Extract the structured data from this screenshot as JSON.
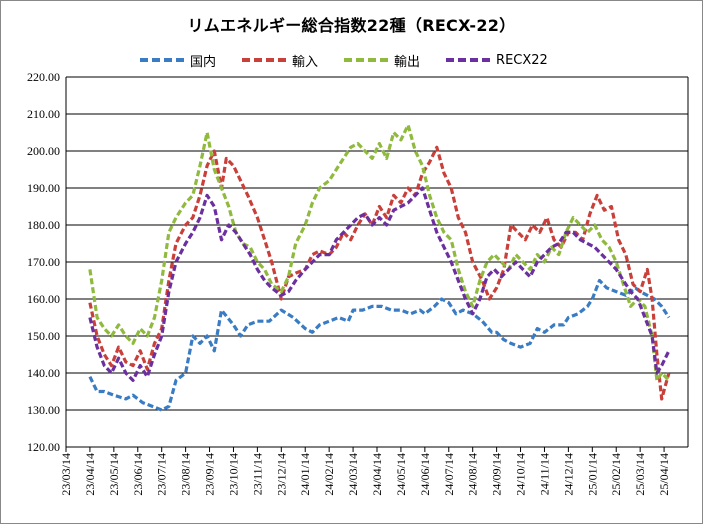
{
  "chart_data": {
    "type": "line",
    "title": "リムエネルギー総合指数22種（RECX-22）",
    "xlabel": "",
    "ylabel": "",
    "ylim": [
      120,
      220
    ],
    "yticks": [
      "120.00",
      "130.00",
      "140.00",
      "150.00",
      "160.00",
      "170.00",
      "180.00",
      "190.00",
      "200.00",
      "210.00",
      "220.00"
    ],
    "x_ticks": [
      "23/03/14",
      "23/04/14",
      "23/05/14",
      "23/06/14",
      "23/07/14",
      "23/08/14",
      "23/09/14",
      "23/10/14",
      "23/11/14",
      "23/12/14",
      "24/01/14",
      "24/02/14",
      "24/03/14",
      "24/04/14",
      "24/05/14",
      "24/06/14",
      "24/07/14",
      "24/08/14",
      "24/09/14",
      "24/10/14",
      "24/11/14",
      "24/12/14",
      "25/01/14",
      "25/02/14",
      "25/03/14",
      "25/04/14"
    ],
    "grid": true,
    "legend_position": "top",
    "series": [
      {
        "name": "国内",
        "color": "#3a7cc4",
        "points": [
          [
            1,
            139
          ],
          [
            1.3,
            135
          ],
          [
            1.6,
            135
          ],
          [
            2,
            134
          ],
          [
            2.5,
            133
          ],
          [
            2.8,
            134
          ],
          [
            3.2,
            132
          ],
          [
            3.6,
            131
          ],
          [
            4,
            130
          ],
          [
            4.3,
            131
          ],
          [
            4.6,
            138
          ],
          [
            5,
            140
          ],
          [
            5.3,
            150
          ],
          [
            5.6,
            148
          ],
          [
            5.9,
            150
          ],
          [
            6.2,
            146
          ],
          [
            6.5,
            157
          ],
          [
            7,
            153
          ],
          [
            7.3,
            150
          ],
          [
            7.6,
            153
          ],
          [
            8,
            154
          ],
          [
            8.5,
            154
          ],
          [
            9,
            157
          ],
          [
            9.5,
            155
          ],
          [
            10,
            152
          ],
          [
            10.3,
            151
          ],
          [
            10.6,
            153
          ],
          [
            11,
            154
          ],
          [
            11.4,
            155
          ],
          [
            11.8,
            154
          ],
          [
            12,
            157
          ],
          [
            12.4,
            157
          ],
          [
            12.8,
            158
          ],
          [
            13.2,
            158
          ],
          [
            13.6,
            157
          ],
          [
            14,
            157
          ],
          [
            14.4,
            156
          ],
          [
            14.8,
            157
          ],
          [
            15,
            156
          ],
          [
            15.4,
            158
          ],
          [
            15.7,
            160
          ],
          [
            16,
            159
          ],
          [
            16.3,
            156
          ],
          [
            16.6,
            157
          ],
          [
            17,
            156
          ],
          [
            17.4,
            154
          ],
          [
            17.8,
            151
          ],
          [
            18,
            151
          ],
          [
            18.3,
            149
          ],
          [
            18.6,
            148
          ],
          [
            19,
            147
          ],
          [
            19.4,
            148
          ],
          [
            19.7,
            152
          ],
          [
            20,
            151
          ],
          [
            20.4,
            153
          ],
          [
            20.8,
            153
          ],
          [
            21,
            155
          ],
          [
            21.4,
            156
          ],
          [
            21.8,
            158
          ],
          [
            22,
            160
          ],
          [
            22.3,
            165
          ],
          [
            22.6,
            163
          ],
          [
            23,
            162
          ],
          [
            23.4,
            161
          ],
          [
            23.8,
            163
          ],
          [
            24,
            162
          ],
          [
            24.3,
            161
          ],
          [
            24.6,
            160
          ],
          [
            24.9,
            158
          ],
          [
            25.2,
            155
          ]
        ]
      },
      {
        "name": "輸入",
        "color": "#c9403a",
        "points": [
          [
            1,
            159
          ],
          [
            1.3,
            150
          ],
          [
            1.6,
            145
          ],
          [
            1.9,
            142
          ],
          [
            2.2,
            147
          ],
          [
            2.5,
            143
          ],
          [
            2.8,
            142
          ],
          [
            3.1,
            146
          ],
          [
            3.4,
            141
          ],
          [
            3.7,
            148
          ],
          [
            4,
            152
          ],
          [
            4.3,
            165
          ],
          [
            4.6,
            175
          ],
          [
            5,
            180
          ],
          [
            5.3,
            182
          ],
          [
            5.6,
            188
          ],
          [
            5.9,
            196
          ],
          [
            6.2,
            200
          ],
          [
            6.5,
            190
          ],
          [
            6.7,
            198
          ],
          [
            7,
            196
          ],
          [
            7.3,
            192
          ],
          [
            7.6,
            188
          ],
          [
            8,
            182
          ],
          [
            8.3,
            176
          ],
          [
            8.6,
            170
          ],
          [
            9,
            160
          ],
          [
            9.3,
            166
          ],
          [
            9.6,
            167
          ],
          [
            10,
            168
          ],
          [
            10.3,
            172
          ],
          [
            10.6,
            173
          ],
          [
            11,
            172
          ],
          [
            11.3,
            174
          ],
          [
            11.6,
            178
          ],
          [
            11.9,
            176
          ],
          [
            12.2,
            180
          ],
          [
            12.5,
            183
          ],
          [
            12.8,
            180
          ],
          [
            13.1,
            185
          ],
          [
            13.4,
            182
          ],
          [
            13.7,
            188
          ],
          [
            14,
            186
          ],
          [
            14.3,
            190
          ],
          [
            14.6,
            188
          ],
          [
            14.9,
            194
          ],
          [
            15.2,
            197
          ],
          [
            15.5,
            201
          ],
          [
            15.8,
            194
          ],
          [
            16.1,
            190
          ],
          [
            16.4,
            182
          ],
          [
            16.7,
            178
          ],
          [
            17,
            170
          ],
          [
            17.4,
            165
          ],
          [
            17.7,
            160
          ],
          [
            18,
            163
          ],
          [
            18.3,
            168
          ],
          [
            18.6,
            180
          ],
          [
            18.9,
            178
          ],
          [
            19.2,
            176
          ],
          [
            19.5,
            180
          ],
          [
            19.8,
            178
          ],
          [
            20.1,
            182
          ],
          [
            20.4,
            176
          ],
          [
            20.7,
            174
          ],
          [
            21,
            178
          ],
          [
            21.3,
            178
          ],
          [
            21.6,
            176
          ],
          [
            21.9,
            183
          ],
          [
            22.2,
            188
          ],
          [
            22.5,
            184
          ],
          [
            22.8,
            185
          ],
          [
            23.1,
            176
          ],
          [
            23.4,
            172
          ],
          [
            23.7,
            164
          ],
          [
            24,
            162
          ],
          [
            24.3,
            168
          ],
          [
            24.5,
            160
          ],
          [
            24.7,
            145
          ],
          [
            24.9,
            133
          ],
          [
            25.2,
            140
          ]
        ]
      },
      {
        "name": "輸出",
        "color": "#8fba3e",
        "points": [
          [
            1,
            168
          ],
          [
            1.3,
            155
          ],
          [
            1.6,
            152
          ],
          [
            1.9,
            150
          ],
          [
            2.2,
            153
          ],
          [
            2.5,
            150
          ],
          [
            2.8,
            148
          ],
          [
            3.1,
            152
          ],
          [
            3.4,
            150
          ],
          [
            3.7,
            155
          ],
          [
            4,
            165
          ],
          [
            4.3,
            178
          ],
          [
            4.6,
            182
          ],
          [
            5,
            186
          ],
          [
            5.3,
            188
          ],
          [
            5.6,
            196
          ],
          [
            5.9,
            205
          ],
          [
            6.2,
            195
          ],
          [
            6.5,
            190
          ],
          [
            6.8,
            185
          ],
          [
            7.1,
            178
          ],
          [
            7.4,
            175
          ],
          [
            7.7,
            174
          ],
          [
            8,
            170
          ],
          [
            8.3,
            168
          ],
          [
            8.6,
            164
          ],
          [
            9,
            162
          ],
          [
            9.3,
            166
          ],
          [
            9.6,
            175
          ],
          [
            10,
            180
          ],
          [
            10.3,
            186
          ],
          [
            10.6,
            190
          ],
          [
            11,
            192
          ],
          [
            11.3,
            195
          ],
          [
            11.6,
            198
          ],
          [
            11.9,
            201
          ],
          [
            12.2,
            202
          ],
          [
            12.5,
            200
          ],
          [
            12.8,
            198
          ],
          [
            13.1,
            202
          ],
          [
            13.4,
            198
          ],
          [
            13.7,
            205
          ],
          [
            14,
            203
          ],
          [
            14.3,
            207
          ],
          [
            14.6,
            200
          ],
          [
            14.9,
            196
          ],
          [
            15.2,
            188
          ],
          [
            15.5,
            182
          ],
          [
            15.8,
            178
          ],
          [
            16.1,
            176
          ],
          [
            16.4,
            168
          ],
          [
            16.7,
            162
          ],
          [
            17,
            158
          ],
          [
            17.3,
            165
          ],
          [
            17.6,
            170
          ],
          [
            17.9,
            172
          ],
          [
            18.2,
            170
          ],
          [
            18.5,
            168
          ],
          [
            18.8,
            172
          ],
          [
            19.1,
            170
          ],
          [
            19.4,
            168
          ],
          [
            19.7,
            172
          ],
          [
            20,
            170
          ],
          [
            20.3,
            174
          ],
          [
            20.6,
            172
          ],
          [
            20.9,
            178
          ],
          [
            21.2,
            182
          ],
          [
            21.5,
            180
          ],
          [
            21.8,
            178
          ],
          [
            22.1,
            180
          ],
          [
            22.4,
            176
          ],
          [
            22.7,
            174
          ],
          [
            23,
            170
          ],
          [
            23.3,
            164
          ],
          [
            23.6,
            158
          ],
          [
            23.9,
            160
          ],
          [
            24.2,
            158
          ],
          [
            24.5,
            150
          ],
          [
            24.7,
            138
          ],
          [
            24.9,
            140
          ],
          [
            25.2,
            138
          ]
        ]
      },
      {
        "name": "RECX22",
        "color": "#6b2fa0",
        "points": [
          [
            1,
            155
          ],
          [
            1.3,
            147
          ],
          [
            1.6,
            142
          ],
          [
            1.9,
            140
          ],
          [
            2.2,
            144
          ],
          [
            2.5,
            140
          ],
          [
            2.8,
            138
          ],
          [
            3.1,
            142
          ],
          [
            3.4,
            139
          ],
          [
            3.7,
            145
          ],
          [
            4,
            150
          ],
          [
            4.3,
            162
          ],
          [
            4.6,
            170
          ],
          [
            5,
            175
          ],
          [
            5.3,
            178
          ],
          [
            5.6,
            182
          ],
          [
            5.9,
            188
          ],
          [
            6.2,
            185
          ],
          [
            6.5,
            176
          ],
          [
            6.8,
            180
          ],
          [
            7.1,
            178
          ],
          [
            7.4,
            175
          ],
          [
            7.7,
            172
          ],
          [
            8,
            168
          ],
          [
            8.3,
            165
          ],
          [
            8.6,
            163
          ],
          [
            9,
            161
          ],
          [
            9.3,
            162
          ],
          [
            9.6,
            165
          ],
          [
            10,
            168
          ],
          [
            10.3,
            170
          ],
          [
            10.6,
            172
          ],
          [
            11,
            172
          ],
          [
            11.3,
            176
          ],
          [
            11.6,
            178
          ],
          [
            11.9,
            180
          ],
          [
            12.2,
            182
          ],
          [
            12.5,
            183
          ],
          [
            12.8,
            180
          ],
          [
            13.1,
            182
          ],
          [
            13.4,
            180
          ],
          [
            13.7,
            184
          ],
          [
            14,
            185
          ],
          [
            14.3,
            186
          ],
          [
            14.6,
            188
          ],
          [
            14.9,
            190
          ],
          [
            15.2,
            184
          ],
          [
            15.5,
            178
          ],
          [
            15.8,
            174
          ],
          [
            16.1,
            170
          ],
          [
            16.4,
            165
          ],
          [
            16.7,
            160
          ],
          [
            17,
            156
          ],
          [
            17.3,
            160
          ],
          [
            17.6,
            166
          ],
          [
            17.9,
            168
          ],
          [
            18.2,
            166
          ],
          [
            18.5,
            168
          ],
          [
            18.8,
            170
          ],
          [
            19.1,
            168
          ],
          [
            19.4,
            166
          ],
          [
            19.7,
            170
          ],
          [
            20,
            172
          ],
          [
            20.3,
            174
          ],
          [
            20.6,
            175
          ],
          [
            20.9,
            178
          ],
          [
            21.2,
            178
          ],
          [
            21.5,
            176
          ],
          [
            21.8,
            175
          ],
          [
            22.1,
            174
          ],
          [
            22.4,
            172
          ],
          [
            22.7,
            170
          ],
          [
            23,
            168
          ],
          [
            23.3,
            165
          ],
          [
            23.6,
            162
          ],
          [
            23.9,
            160
          ],
          [
            24.2,
            155
          ],
          [
            24.5,
            150
          ],
          [
            24.7,
            140
          ],
          [
            24.9,
            142
          ],
          [
            25.2,
            146
          ]
        ]
      }
    ]
  }
}
